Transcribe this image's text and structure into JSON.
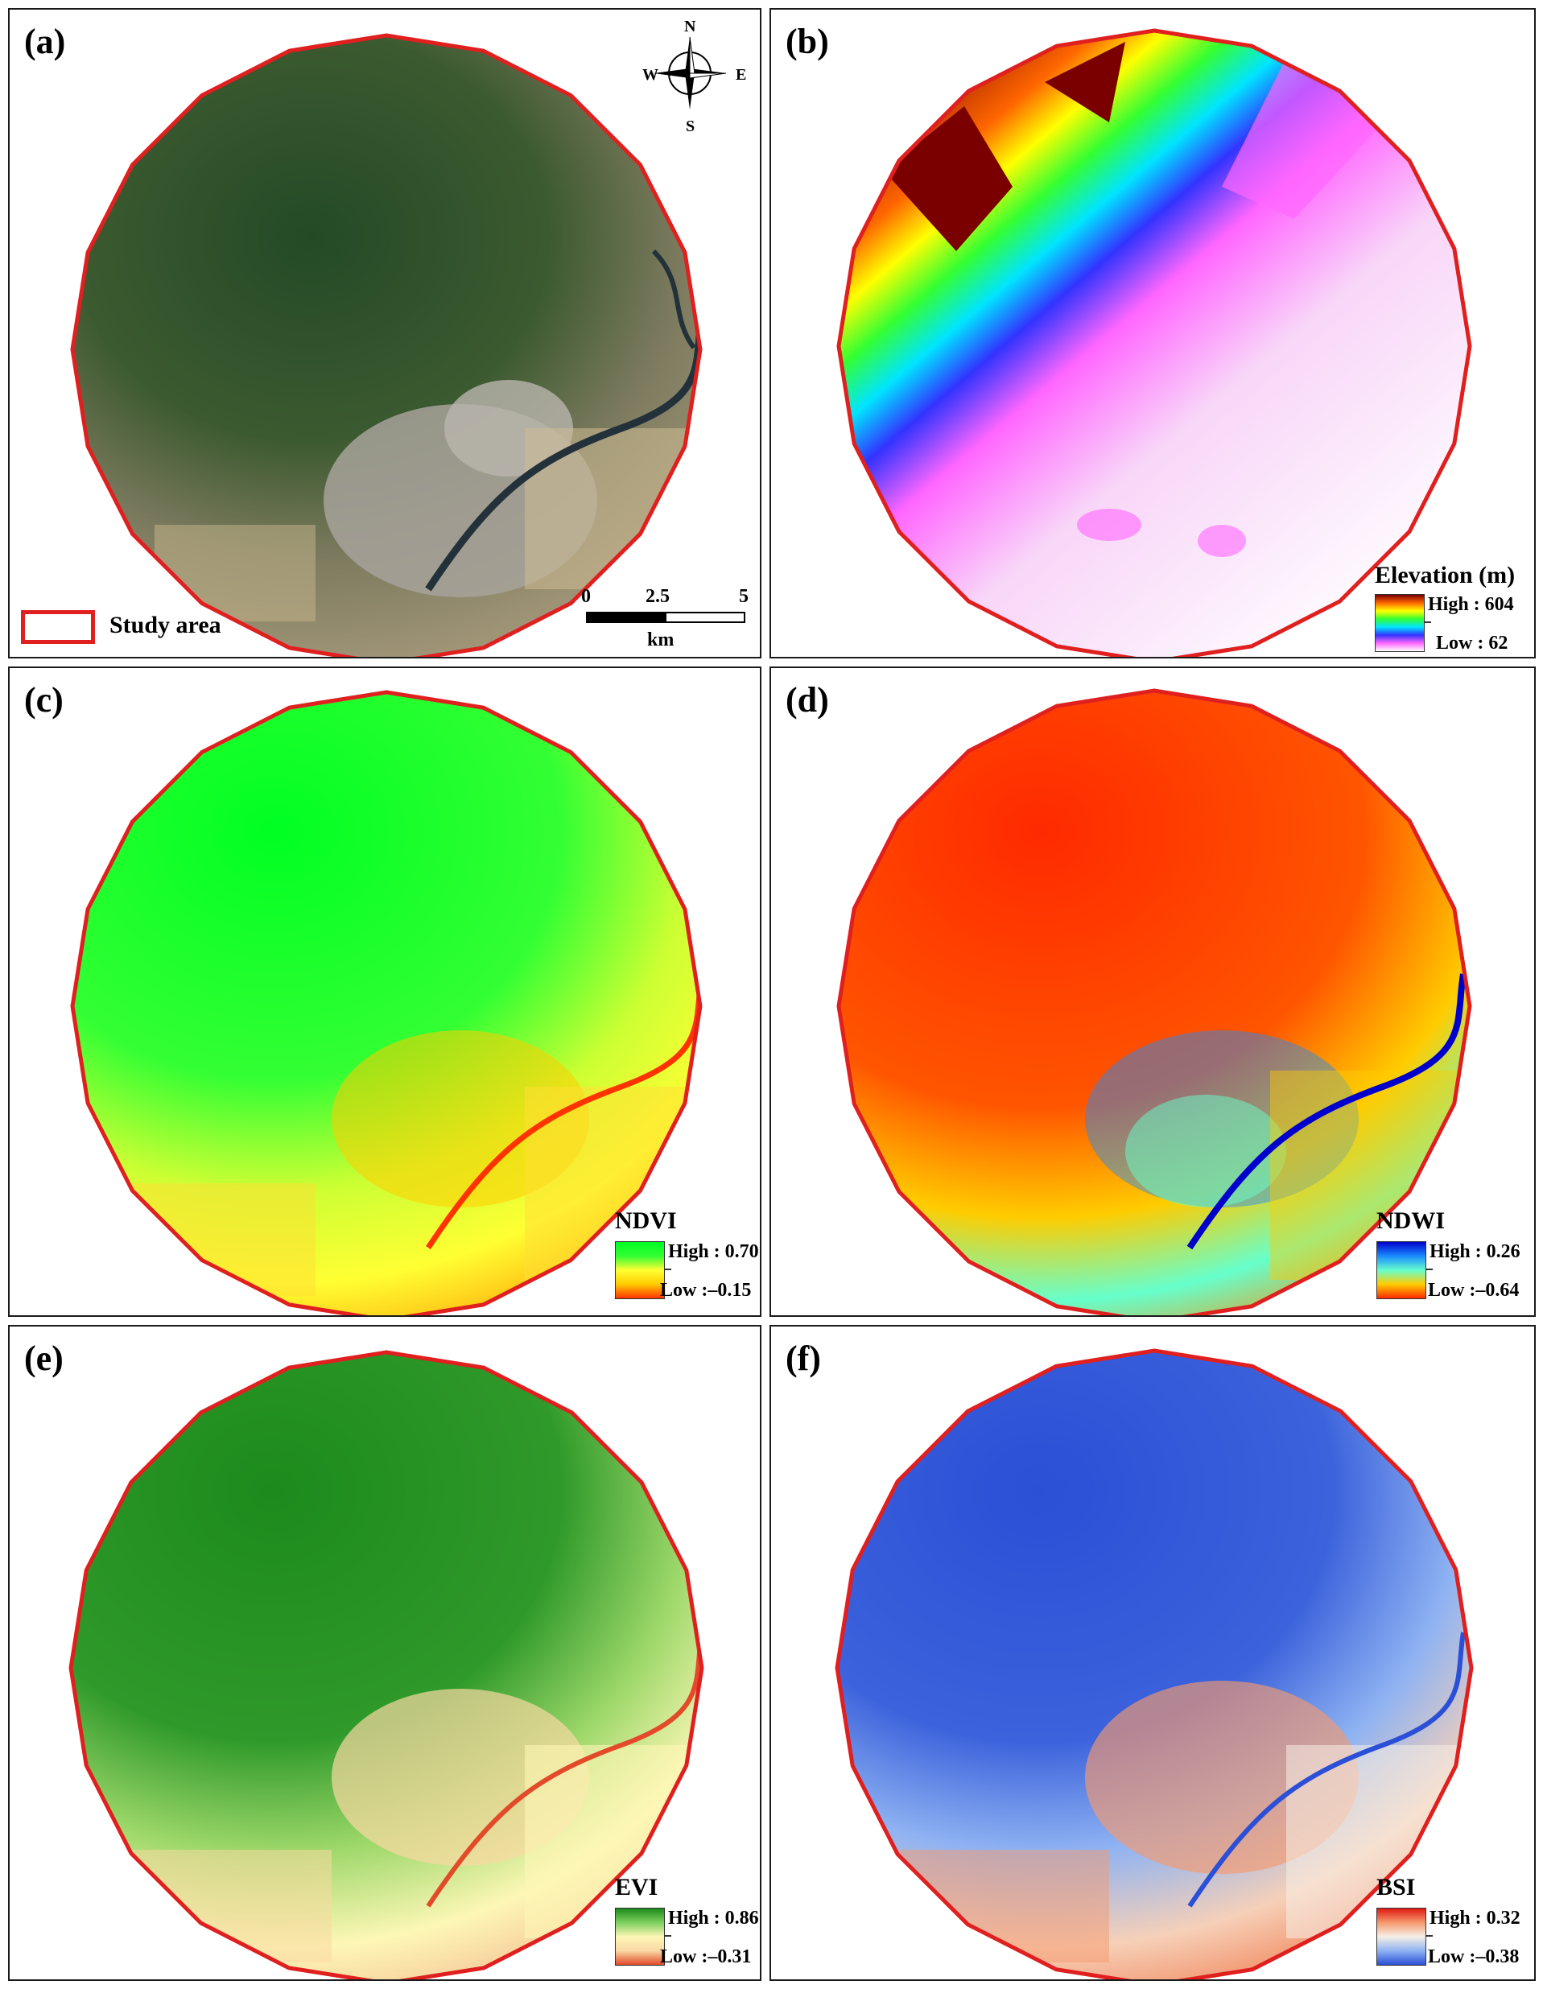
{
  "panels": {
    "a": {
      "label": "(a)",
      "map_type": "satellite-rgb"
    },
    "b": {
      "label": "(b)",
      "map_type": "elevation",
      "legend": {
        "title": "Elevation (m)",
        "high": "High : 604",
        "low": "Low : 62"
      }
    },
    "c": {
      "label": "(c)",
      "map_type": "ndvi",
      "legend": {
        "title": "NDVI",
        "high": "High : 0.70",
        "low": "Low :–0.15"
      }
    },
    "d": {
      "label": "(d)",
      "map_type": "ndwi",
      "legend": {
        "title": "NDWI",
        "high": "High : 0.26",
        "low": "Low :–0.64"
      }
    },
    "e": {
      "label": "(e)",
      "map_type": "evi",
      "legend": {
        "title": "EVI",
        "high": "High : 0.86",
        "low": "Low :–0.31"
      }
    },
    "f": {
      "label": "(f)",
      "map_type": "bsi",
      "legend": {
        "title": "BSI",
        "high": "High : 0.32",
        "low": "Low :–0.38"
      }
    }
  },
  "compass": {
    "n": "N",
    "s": "S",
    "e": "E",
    "w": "W"
  },
  "scalebar": {
    "tick_0": "0",
    "tick_mid": "2.5",
    "tick_end": "5",
    "unit": "km"
  },
  "study_area": {
    "label": "Study area",
    "border_color": "#e01f1f"
  },
  "colors": {
    "boundary": "#e01f1f",
    "elevation_ramp": [
      "#ffffff",
      "#ff66ff",
      "#3333ff",
      "#00e5ff",
      "#33ff33",
      "#ffff00",
      "#ff6600",
      "#7a0000"
    ],
    "ndvi_ramp": [
      "#ff3300",
      "#ffcc00",
      "#ffff33",
      "#33ff33",
      "#00ff22"
    ],
    "ndwi_ramp": [
      "#ff2a00",
      "#ffcc00",
      "#66ffcc",
      "#1a8cff",
      "#0000cc"
    ],
    "evi_ramp": [
      "#e24a2a",
      "#f9d8a3",
      "#fdf7b6",
      "#7ccf5e",
      "#1d8a1d"
    ],
    "bsi_ramp": [
      "#2b4fd6",
      "#8fb3f2",
      "#f6efe6",
      "#f59a6e",
      "#e01a10"
    ]
  }
}
